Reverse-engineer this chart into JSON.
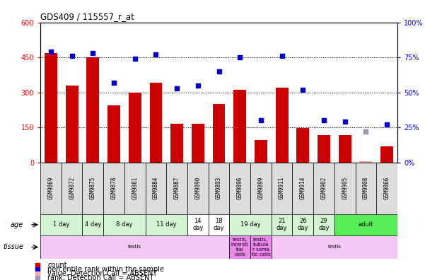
{
  "title": "GDS409 / 115557_r_at",
  "samples": [
    "GSM9869",
    "GSM9872",
    "GSM9875",
    "GSM9878",
    "GSM9881",
    "GSM9884",
    "GSM9887",
    "GSM9890",
    "GSM9893",
    "GSM9896",
    "GSM9899",
    "GSM9911",
    "GSM9914",
    "GSM9902",
    "GSM9905",
    "GSM9908",
    "GSM9866"
  ],
  "bar_values": [
    470,
    330,
    450,
    245,
    300,
    340,
    165,
    165,
    250,
    310,
    95,
    320,
    148,
    118,
    118,
    5,
    68
  ],
  "bar_absent": [
    false,
    false,
    false,
    false,
    false,
    false,
    false,
    false,
    false,
    false,
    false,
    false,
    false,
    false,
    false,
    true,
    false
  ],
  "dot_values": [
    79,
    76,
    78,
    57,
    74,
    77,
    53,
    55,
    65,
    75,
    30,
    76,
    52,
    30,
    29,
    22,
    27
  ],
  "dot_absent": [
    false,
    false,
    false,
    false,
    false,
    false,
    false,
    false,
    false,
    false,
    false,
    false,
    false,
    false,
    false,
    true,
    false
  ],
  "ylim_left": [
    0,
    600
  ],
  "ylim_right": [
    0,
    100
  ],
  "yticks_left": [
    0,
    150,
    300,
    450,
    600
  ],
  "ytick_labels_left": [
    "0",
    "150",
    "300",
    "450",
    "600"
  ],
  "yticks_right": [
    0,
    25,
    50,
    75,
    100
  ],
  "ytick_labels_right": [
    "0%",
    "25%",
    "50%",
    "75%",
    "100%"
  ],
  "age_groups": [
    {
      "label": "1 day",
      "start": 0,
      "end": 2,
      "color": "#d4f5d4"
    },
    {
      "label": "4 day",
      "start": 2,
      "end": 3,
      "color": "#d4f5d4"
    },
    {
      "label": "8 day",
      "start": 3,
      "end": 5,
      "color": "#d4f5d4"
    },
    {
      "label": "11 day",
      "start": 5,
      "end": 7,
      "color": "#d4f5d4"
    },
    {
      "label": "14\nday",
      "start": 7,
      "end": 8,
      "color": "#ffffff"
    },
    {
      "label": "18\nday",
      "start": 8,
      "end": 9,
      "color": "#ffffff"
    },
    {
      "label": "19 day",
      "start": 9,
      "end": 11,
      "color": "#d4f5d4"
    },
    {
      "label": "21\nday",
      "start": 11,
      "end": 12,
      "color": "#d4f5d4"
    },
    {
      "label": "26\nday",
      "start": 12,
      "end": 13,
      "color": "#d4f5d4"
    },
    {
      "label": "29\nday",
      "start": 13,
      "end": 14,
      "color": "#d4f5d4"
    },
    {
      "label": "adult",
      "start": 14,
      "end": 17,
      "color": "#55ee55"
    }
  ],
  "tissue_groups": [
    {
      "label": "testis",
      "start": 0,
      "end": 9,
      "color": "#f5c8f5"
    },
    {
      "label": "testis,\nintersti\ntial\ncells",
      "start": 9,
      "end": 10,
      "color": "#ee88ee"
    },
    {
      "label": "testis,\ntubula\nr soma\ntic cells",
      "start": 10,
      "end": 11,
      "color": "#ee88ee"
    },
    {
      "label": "testis",
      "start": 11,
      "end": 17,
      "color": "#f5c8f5"
    }
  ],
  "bar_color": "#cc0000",
  "bar_absent_color": "#ffaaaa",
  "dot_color": "#0000cc",
  "dot_absent_color": "#9999bb",
  "bg_color": "#ffffff"
}
